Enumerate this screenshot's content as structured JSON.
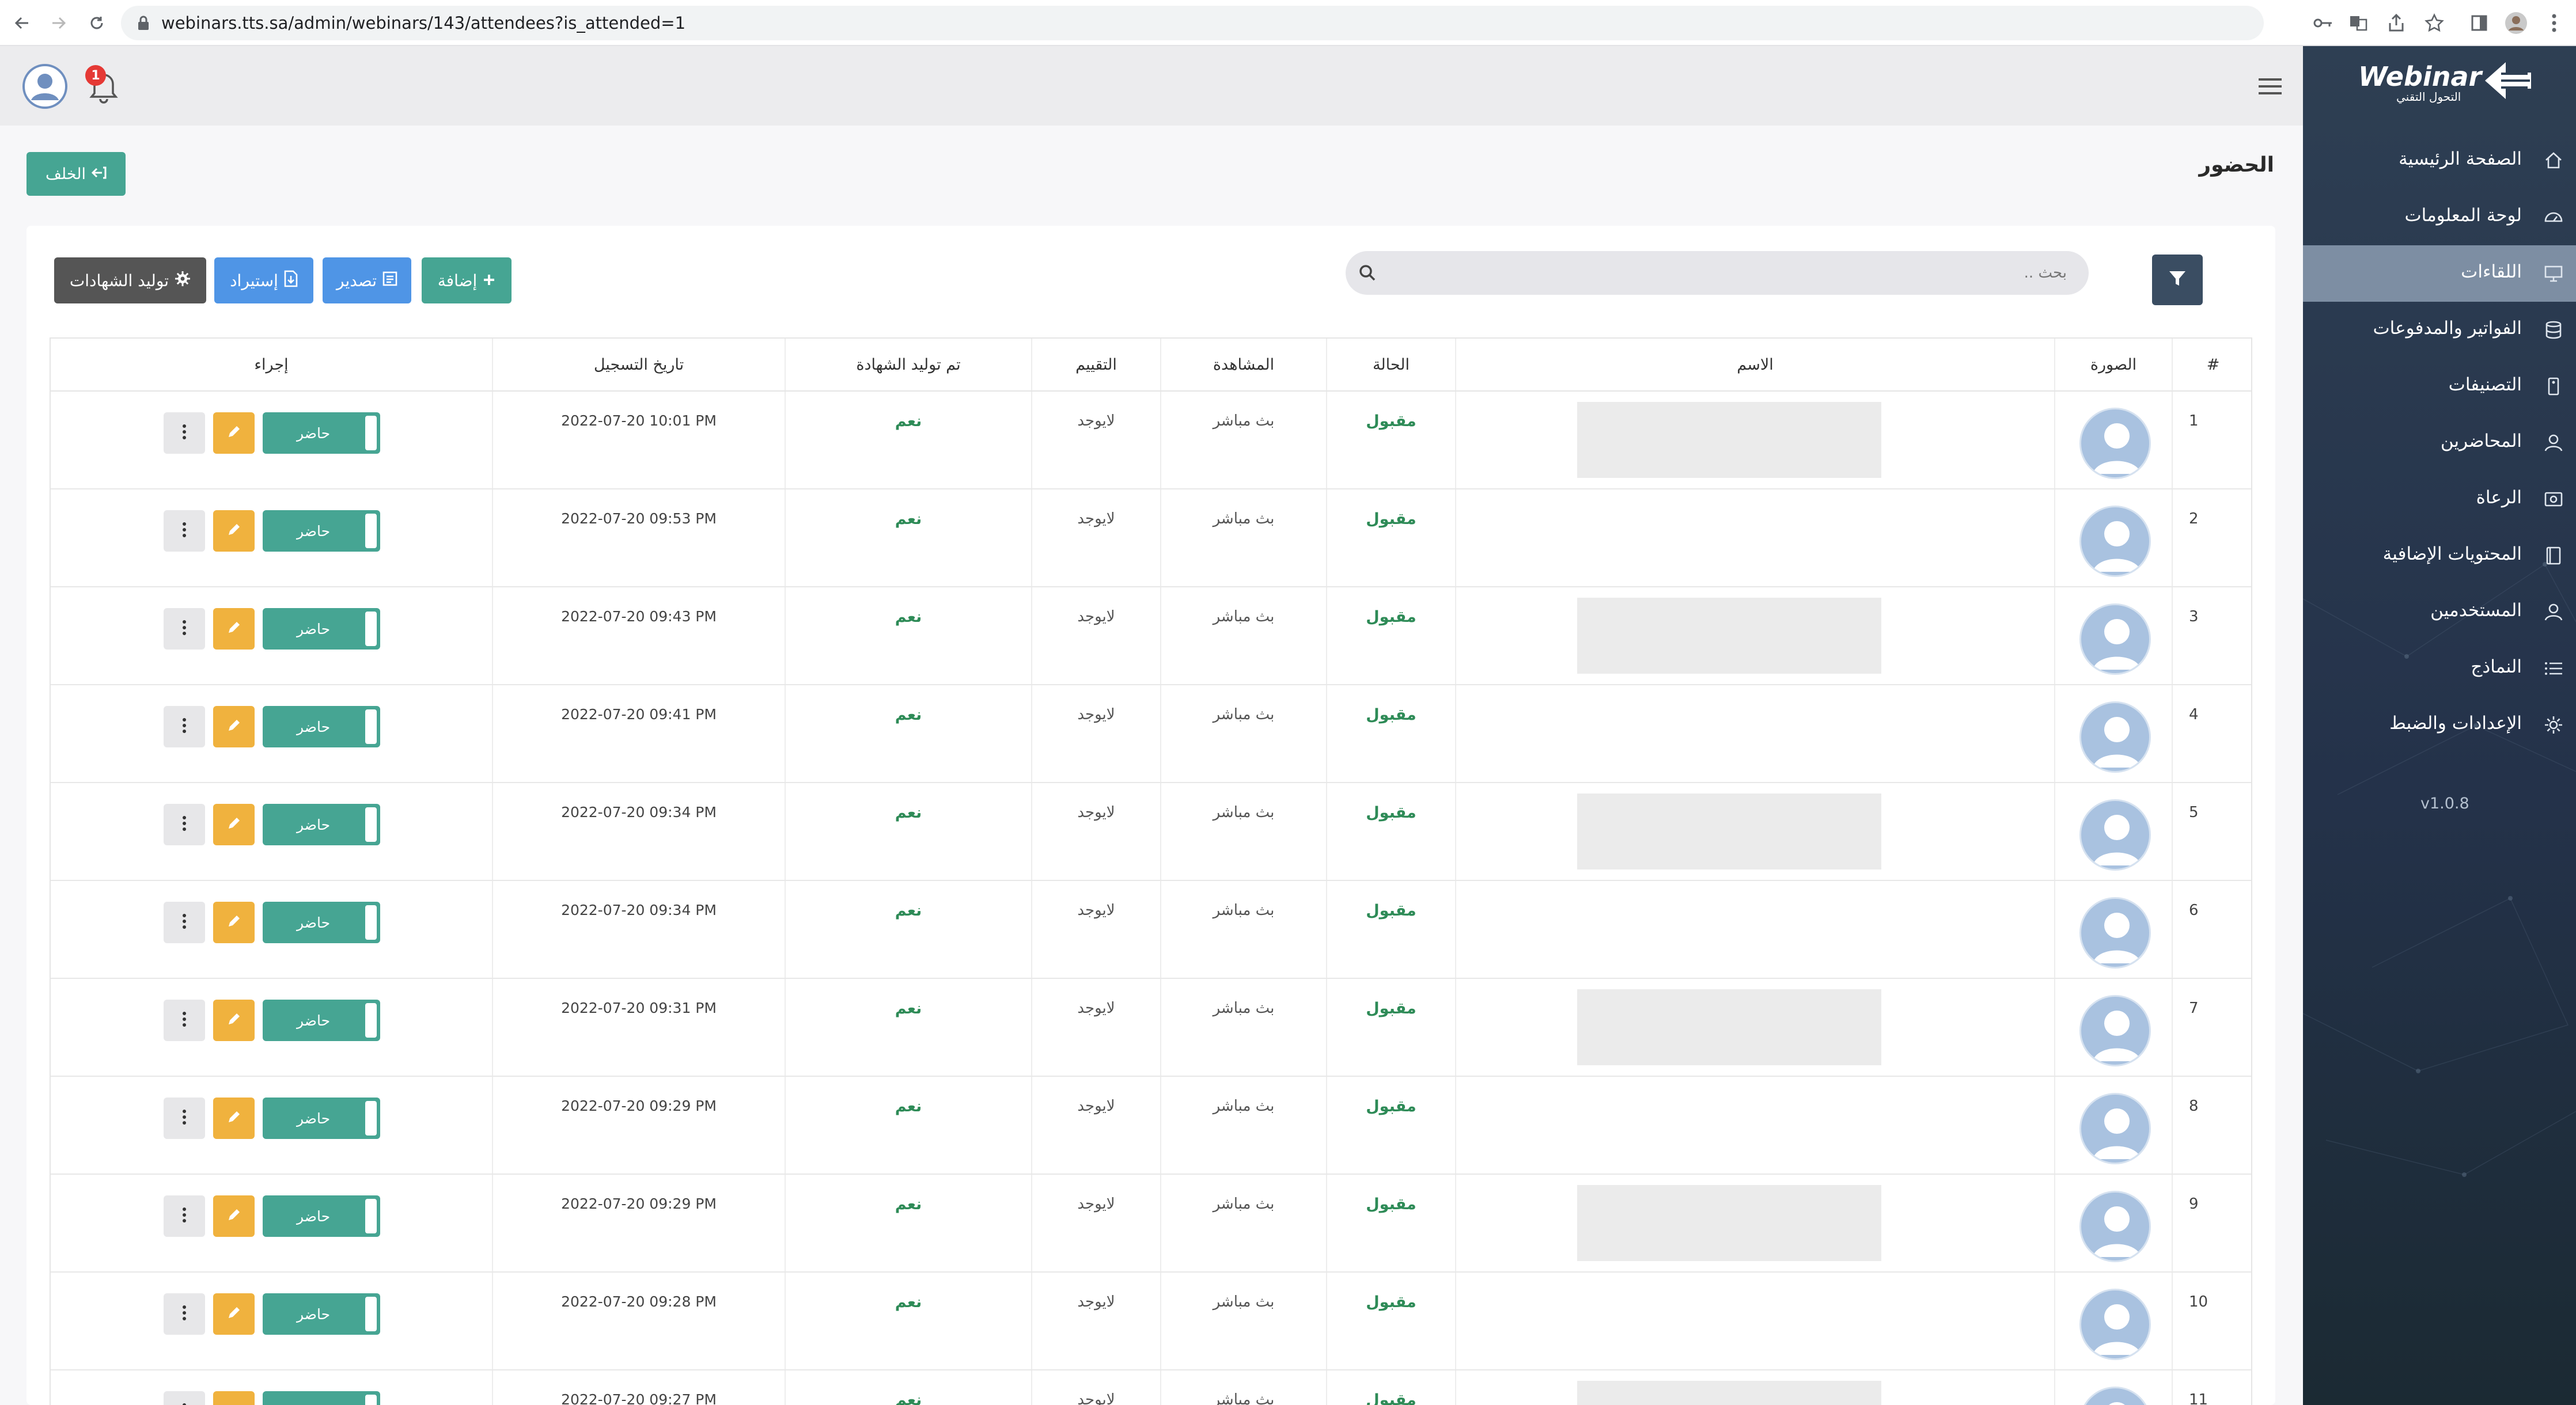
{
  "browser": {
    "url": "webinars.tts.sa/admin/webinars/143/attendees?is_attended=1"
  },
  "header": {
    "notification_count": "1"
  },
  "page": {
    "title": "الحضور",
    "back_label": "الخلف"
  },
  "toolbar": {
    "generate_label": "توليد الشهادات",
    "import_label": "إستيراد",
    "export_label": "تصدير",
    "add_label": "إضافة"
  },
  "search": {
    "placeholder": "بحث .."
  },
  "table": {
    "headers": {
      "num": "#",
      "photo": "الصورة",
      "name": "الاسم",
      "status": "الحالة",
      "view": "المشاهدة",
      "rating": "التقييم",
      "cert": "تم توليد الشهادة",
      "date": "تاريخ التسجيل",
      "action": "إجراء"
    },
    "attend_label": "حاضر",
    "rows": [
      {
        "num": "1",
        "status": "مقبول",
        "view": "بث مباشر",
        "rating": "لايوجد",
        "cert": "نعم",
        "date": "2022-07-20 10:01 PM",
        "name_placeholder": true
      },
      {
        "num": "2",
        "status": "مقبول",
        "view": "بث مباشر",
        "rating": "لايوجد",
        "cert": "نعم",
        "date": "2022-07-20 09:53 PM",
        "name_placeholder": false
      },
      {
        "num": "3",
        "status": "مقبول",
        "view": "بث مباشر",
        "rating": "لايوجد",
        "cert": "نعم",
        "date": "2022-07-20 09:43 PM",
        "name_placeholder": true
      },
      {
        "num": "4",
        "status": "مقبول",
        "view": "بث مباشر",
        "rating": "لايوجد",
        "cert": "نعم",
        "date": "2022-07-20 09:41 PM",
        "name_placeholder": false
      },
      {
        "num": "5",
        "status": "مقبول",
        "view": "بث مباشر",
        "rating": "لايوجد",
        "cert": "نعم",
        "date": "2022-07-20 09:34 PM",
        "name_placeholder": true
      },
      {
        "num": "6",
        "status": "مقبول",
        "view": "بث مباشر",
        "rating": "لايوجد",
        "cert": "نعم",
        "date": "2022-07-20 09:34 PM",
        "name_placeholder": false
      },
      {
        "num": "7",
        "status": "مقبول",
        "view": "بث مباشر",
        "rating": "لايوجد",
        "cert": "نعم",
        "date": "2022-07-20 09:31 PM",
        "name_placeholder": true
      },
      {
        "num": "8",
        "status": "مقبول",
        "view": "بث مباشر",
        "rating": "لايوجد",
        "cert": "نعم",
        "date": "2022-07-20 09:29 PM",
        "name_placeholder": false
      },
      {
        "num": "9",
        "status": "مقبول",
        "view": "بث مباشر",
        "rating": "لايوجد",
        "cert": "نعم",
        "date": "2022-07-20 09:29 PM",
        "name_placeholder": true
      },
      {
        "num": "10",
        "status": "مقبول",
        "view": "بث مباشر",
        "rating": "لايوجد",
        "cert": "نعم",
        "date": "2022-07-20 09:28 PM",
        "name_placeholder": false
      },
      {
        "num": "11",
        "status": "مقبول",
        "view": "بث مباشر",
        "rating": "لايوجد",
        "cert": "نعم",
        "date": "2022-07-20 09:27 PM",
        "name_placeholder": true
      }
    ]
  },
  "sidebar": {
    "logo_word": "Webinar",
    "logo_sub": "التحول التقني",
    "version": "v1.0.8",
    "items": [
      {
        "label": "الصفحة الرئيسية",
        "icon": "home-icon",
        "active": false
      },
      {
        "label": "لوحة المعلومات",
        "icon": "dashboard-icon",
        "active": false
      },
      {
        "label": "اللقاءات",
        "icon": "monitor-icon",
        "active": true
      },
      {
        "label": "الفواتير والمدفوعات",
        "icon": "database-icon",
        "active": false
      },
      {
        "label": "التصنيفات",
        "icon": "tag-icon",
        "active": false
      },
      {
        "label": "المحاضرين",
        "icon": "user-icon",
        "active": false
      },
      {
        "label": "الرعاة",
        "icon": "sponsor-icon",
        "active": false
      },
      {
        "label": "المحتويات الإضافية",
        "icon": "book-icon",
        "active": false
      },
      {
        "label": "المستخدمين",
        "icon": "users-icon",
        "active": false
      },
      {
        "label": "النماذج",
        "icon": "list-icon",
        "active": false
      },
      {
        "label": "الإعدادات والضبط",
        "icon": "gear-icon",
        "active": false
      }
    ]
  },
  "colors": {
    "accent_green": "#46a593",
    "accent_blue": "#4f95e6",
    "warning_yellow": "#f0b23e",
    "status_green": "#2e8b57",
    "sidebar_dark": "#2e3f53"
  }
}
